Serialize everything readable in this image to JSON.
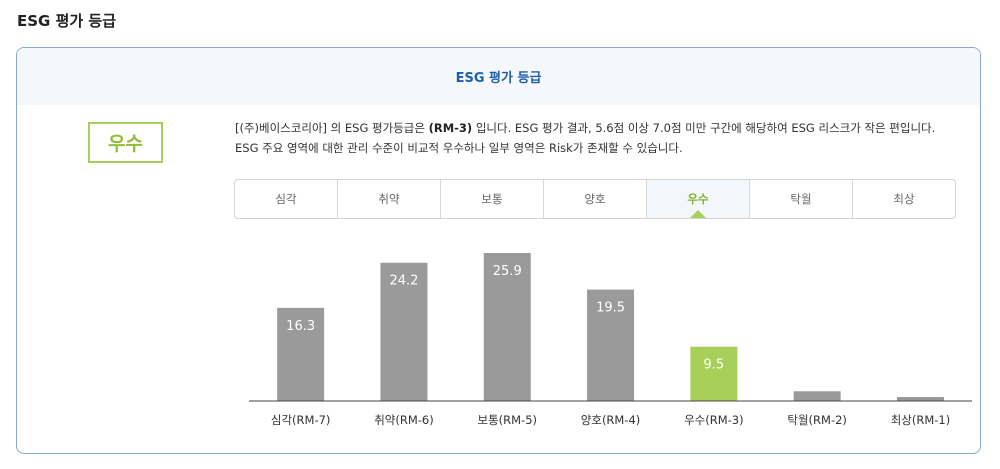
{
  "page": {
    "section_title": "ESG 평가 등급",
    "card_title": "ESG 평가 등급",
    "grade": "우수",
    "description_prefix": "[(주)베이스코리아] 의 ESG 평가등급은 ",
    "description_code": "(RM-3)",
    "description_suffix": " 입니다. ESG 평가 결과, 5.6점 이상 7.0점 미만 구간에 해당하여 ESG 리스크가 작은 편입니다. ESG 주요 영역에 대한 관리 수준이 비교적 우수하나 일부 영역은 Risk가 존재할 수 있습니다."
  },
  "tabs": [
    {
      "label": "심각"
    },
    {
      "label": "취약"
    },
    {
      "label": "보통"
    },
    {
      "label": "양호"
    },
    {
      "label": "우수",
      "active": true
    },
    {
      "label": "탁월"
    },
    {
      "label": "최상"
    }
  ],
  "colors": {
    "bar": "#9a9a9a",
    "highlight": "#a8cf5a",
    "axis": "#444444"
  },
  "chart_data": {
    "type": "bar",
    "categories": [
      "심각(RM-7)",
      "취약(RM-6)",
      "보통(RM-5)",
      "양호(RM-4)",
      "우수(RM-3)",
      "탁월(RM-2)",
      "최상(RM-1)"
    ],
    "values": [
      16.3,
      24.2,
      25.9,
      19.5,
      9.5,
      1.7,
      0.7
    ],
    "data_labels": [
      "16.3",
      "24.2",
      "25.9",
      "19.5",
      "9.5",
      "",
      ""
    ],
    "highlight_index": 4,
    "ylim": [
      0,
      30
    ],
    "grid": false,
    "legend": "none"
  }
}
